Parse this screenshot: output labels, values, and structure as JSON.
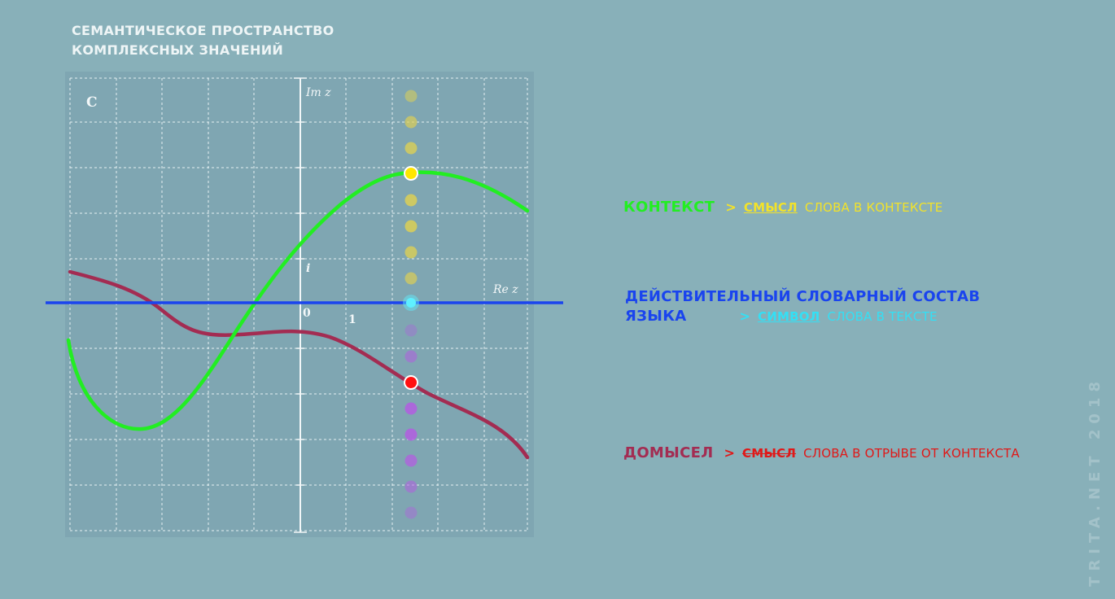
{
  "colors": {
    "background": "#88b0b9",
    "plot_background": "#7fa6b2",
    "grid": "#e6f0f2",
    "axis": "#f2f7f8",
    "title": "#eef5f6",
    "context_curve": "#22ee22",
    "language_line": "#1a44ee",
    "speculation_curve": "#a32c52",
    "yellow_text": "#f2e22a",
    "cyan_text": "#33e0f5",
    "red_text": "#e01818",
    "watermark": "#a3c2c9"
  },
  "title": {
    "line1": "СЕМАНТИЧЕСКОЕ ПРОСТРАНСТВО",
    "line2": "КОМПЛЕКСНЫХ ЗНАЧЕНИЙ"
  },
  "plot": {
    "set_label": "C",
    "imag_axis_label": "Im z",
    "real_axis_label": "Re z",
    "origin_label": "0",
    "unit_real_label": "1",
    "unit_imag_label": "i"
  },
  "legend": {
    "context": {
      "label": "КОНТЕКСТ",
      "separator": ">",
      "keyword": "СМЫСЛ",
      "rest": "СЛОВА В КОНТЕКСТЕ"
    },
    "language": {
      "label_line1": "ДЕЙСТВИТЕЛЬНЫЙ СЛОВАРНЫЙ  СОСТАВ",
      "label_line2": "ЯЗЫКА",
      "separator": ">",
      "keyword": "СИМВОЛ",
      "rest": "СЛОВА В ТЕКСТЕ"
    },
    "speculation": {
      "label": "ДОМЫСЕЛ",
      "separator": ">",
      "keyword": "СМЫСЛ",
      "rest": "СЛОВА В ОТРЫВЕ ОТ КОНТЕКСТА"
    }
  },
  "markers": {
    "context_point_color": "#ffe600",
    "language_point_color": "#5ff0ff",
    "speculation_point_color": "#ff1010",
    "upper_dots_color": "#dccf55",
    "lower_dots_color": "#b35de0"
  },
  "watermark": "TRITA.NET 2018"
}
